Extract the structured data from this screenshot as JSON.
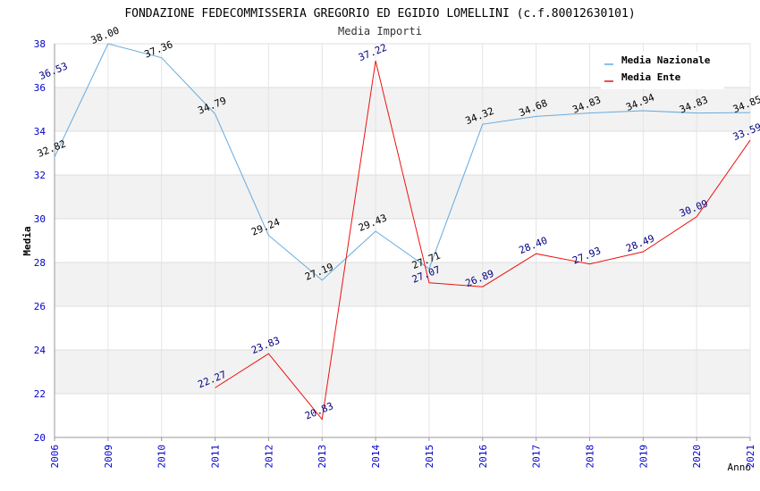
{
  "chart_data": {
    "type": "line",
    "title": "FONDAZIONE FEDECOMMISSERIA GREGORIO ED EGIDIO LOMELLINI (c.f.80012630101)",
    "subtitle": "Media Importi",
    "xlabel": "Anno",
    "ylabel": "Media",
    "ylim": [
      20,
      38
    ],
    "yticks": [
      "20",
      "22",
      "24",
      "26",
      "28",
      "30",
      "32",
      "34",
      "36",
      "38"
    ],
    "categories": [
      "2006",
      "2009",
      "2010",
      "2011",
      "2012",
      "2013",
      "2014",
      "2015",
      "2016",
      "2017",
      "2018",
      "2019",
      "2020",
      "2021"
    ],
    "grid": true,
    "legend_position": "top-right",
    "series": [
      {
        "name": "Media Nazionale",
        "color": "#66aadd",
        "label_color": "#000000",
        "values": [
          32.82,
          38.0,
          37.36,
          34.79,
          29.24,
          27.19,
          29.43,
          27.71,
          34.32,
          34.68,
          34.83,
          34.94,
          34.83,
          34.85
        ],
        "labels": [
          "32.82",
          "38.00",
          "37.36",
          "34.79",
          "29.24",
          "27.19",
          "29.43",
          "27.71",
          "34.32",
          "34.68",
          "34.83",
          "34.94",
          "34.83",
          "34.85"
        ]
      },
      {
        "name": "Media Ente",
        "color": "#ee1111",
        "label_color": "#000080",
        "values": [
          null,
          null,
          null,
          22.27,
          23.83,
          20.83,
          37.22,
          27.07,
          26.89,
          28.4,
          27.93,
          28.49,
          30.09,
          33.59
        ],
        "labels": [
          null,
          null,
          null,
          "22.27",
          "23.83",
          "20.83",
          "37.22",
          "27.07",
          "26.89",
          "28.40",
          "27.93",
          "28.49",
          "30.09",
          "33.59"
        ]
      }
    ],
    "extra_annotations": [
      {
        "text": "36.53",
        "color": "#000080",
        "category_index": 0
      }
    ]
  }
}
